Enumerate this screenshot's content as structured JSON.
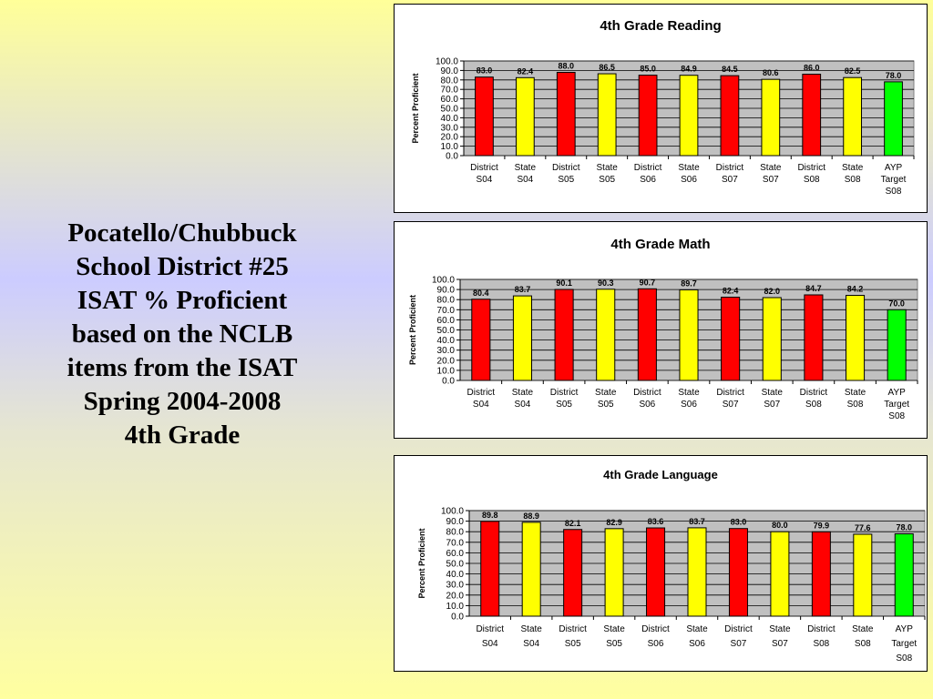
{
  "slide": {
    "title_lines": [
      "Pocatello/Chubbuck",
      "School District #25",
      "ISAT % Proficient",
      "based on the NCLB",
      "items from the ISAT",
      "Spring 2004-2008",
      "4th Grade"
    ]
  },
  "colors": {
    "district": "#ff0000",
    "state": "#ffff00",
    "ayp": "#00ff00",
    "plot_bg": "#c0c0c0"
  },
  "chart_data": [
    {
      "type": "bar",
      "title": "4th Grade Reading",
      "ylabel": "Percent Proficient",
      "xlabel": "",
      "ylim": [
        0,
        100
      ],
      "yticks": [
        "0.0",
        "10.0",
        "20.0",
        "30.0",
        "40.0",
        "50.0",
        "60.0",
        "70.0",
        "80.0",
        "90.0",
        "100.0"
      ],
      "grid": true,
      "legend": "none",
      "categories": [
        [
          "District",
          "S04"
        ],
        [
          "State",
          "S04"
        ],
        [
          "District",
          "S05"
        ],
        [
          "State",
          "S05"
        ],
        [
          "District",
          "S06"
        ],
        [
          "State",
          "S06"
        ],
        [
          "District",
          "S07"
        ],
        [
          "State",
          "S07"
        ],
        [
          "District",
          "S08"
        ],
        [
          "State",
          "S08"
        ],
        [
          "AYP",
          "Target",
          "S08"
        ]
      ],
      "values": [
        83.0,
        82.4,
        88.0,
        86.5,
        85.0,
        84.9,
        84.5,
        80.6,
        86.0,
        82.5,
        78.0
      ],
      "value_labels": [
        "83.0",
        "82.4",
        "88.0",
        "86.5",
        "85.0",
        "84.9",
        "84.5",
        "80.6",
        "86.0",
        "82.5",
        "78.0"
      ],
      "bar_colors": [
        "#ff0000",
        "#ffff00",
        "#ff0000",
        "#ffff00",
        "#ff0000",
        "#ffff00",
        "#ff0000",
        "#ffff00",
        "#ff0000",
        "#ffff00",
        "#00ff00"
      ]
    },
    {
      "type": "bar",
      "title": "4th Grade Math",
      "ylabel": "Percent Proficient",
      "xlabel": "",
      "ylim": [
        0,
        100
      ],
      "yticks": [
        "0.0",
        "10.0",
        "20.0",
        "30.0",
        "40.0",
        "50.0",
        "60.0",
        "70.0",
        "80.0",
        "90.0",
        "100.0"
      ],
      "grid": true,
      "legend": "none",
      "categories": [
        [
          "District",
          "S04"
        ],
        [
          "State",
          "S04"
        ],
        [
          "District",
          "S05"
        ],
        [
          "State",
          "S05"
        ],
        [
          "District",
          "S06"
        ],
        [
          "State",
          "S06"
        ],
        [
          "District",
          "S07"
        ],
        [
          "State",
          "S07"
        ],
        [
          "District",
          "S08"
        ],
        [
          "State",
          "S08"
        ],
        [
          "AYP",
          "Target",
          "S08"
        ]
      ],
      "values": [
        80.4,
        83.7,
        90.1,
        90.3,
        90.7,
        89.7,
        82.4,
        82.0,
        84.7,
        84.2,
        70.0
      ],
      "value_labels": [
        "80.4",
        "83.7",
        "90.1",
        "90.3",
        "90.7",
        "89.7",
        "82.4",
        "82.0",
        "84.7",
        "84.2",
        "70.0"
      ],
      "bar_colors": [
        "#ff0000",
        "#ffff00",
        "#ff0000",
        "#ffff00",
        "#ff0000",
        "#ffff00",
        "#ff0000",
        "#ffff00",
        "#ff0000",
        "#ffff00",
        "#00ff00"
      ]
    },
    {
      "type": "bar",
      "title": "4th Grade Language",
      "ylabel": "Percent Proficient",
      "xlabel": "",
      "ylim": [
        0,
        100
      ],
      "yticks": [
        "0.0",
        "10.0",
        "20.0",
        "30.0",
        "40.0",
        "50.0",
        "60.0",
        "70.0",
        "80.0",
        "90.0",
        "100.0"
      ],
      "grid": true,
      "legend": "none",
      "categories": [
        [
          "District",
          "S04"
        ],
        [
          "State",
          "S04"
        ],
        [
          "District",
          "S05"
        ],
        [
          "State",
          "S05"
        ],
        [
          "District",
          "S06"
        ],
        [
          "State",
          "S06"
        ],
        [
          "District",
          "S07"
        ],
        [
          "State",
          "S07"
        ],
        [
          "District",
          "S08"
        ],
        [
          "State",
          "S08"
        ],
        [
          "AYP",
          "Target",
          "S08"
        ]
      ],
      "values": [
        89.8,
        88.9,
        82.1,
        82.9,
        83.6,
        83.7,
        83.0,
        80.0,
        79.9,
        77.6,
        78.0
      ],
      "value_labels": [
        "89.8",
        "88.9",
        "82.1",
        "82.9",
        "83.6",
        "83.7",
        "83.0",
        "80.0",
        "79.9",
        "77.6",
        "78.0"
      ],
      "bar_colors": [
        "#ff0000",
        "#ffff00",
        "#ff0000",
        "#ffff00",
        "#ff0000",
        "#ffff00",
        "#ff0000",
        "#ffff00",
        "#ff0000",
        "#ffff00",
        "#00ff00"
      ]
    }
  ]
}
